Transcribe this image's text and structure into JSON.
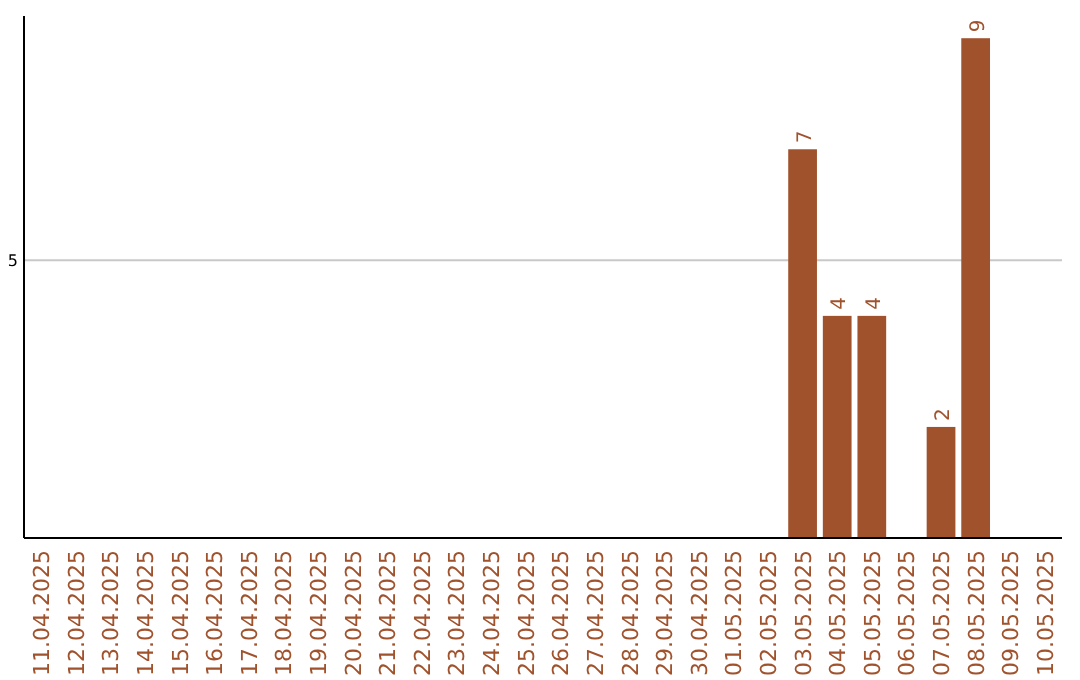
{
  "chart_data": {
    "type": "bar",
    "categories": [
      "11.04.2025",
      "12.04.2025",
      "13.04.2025",
      "14.04.2025",
      "15.04.2025",
      "16.04.2025",
      "17.04.2025",
      "18.04.2025",
      "19.04.2025",
      "20.04.2025",
      "21.04.2025",
      "22.04.2025",
      "23.04.2025",
      "24.04.2025",
      "25.04.2025",
      "26.04.2025",
      "27.04.2025",
      "28.04.2025",
      "29.04.2025",
      "30.04.2025",
      "01.05.2025",
      "02.05.2025",
      "03.05.2025",
      "04.05.2025",
      "05.05.2025",
      "06.05.2025",
      "07.05.2025",
      "08.05.2025",
      "09.05.2025",
      "10.05.2025"
    ],
    "values": [
      null,
      null,
      null,
      null,
      null,
      null,
      null,
      null,
      null,
      null,
      null,
      null,
      null,
      null,
      null,
      null,
      null,
      null,
      null,
      null,
      null,
      null,
      7,
      4,
      4,
      null,
      2,
      9,
      null,
      null
    ],
    "data_labels": true,
    "color": "#a0522d",
    "ylim": [
      0,
      9.4
    ],
    "yticks": [
      5
    ],
    "grid": "y"
  }
}
